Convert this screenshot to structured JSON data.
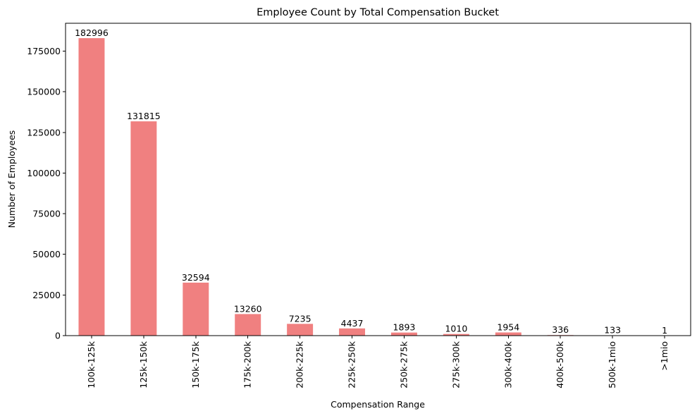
{
  "chart_data": {
    "type": "bar",
    "title": "Employee Count by Total Compensation Bucket",
    "xlabel": "Compensation Range",
    "ylabel": "Number of Employees",
    "categories": [
      "100k-125k",
      "125k-150k",
      "150k-175k",
      "175k-200k",
      "200k-225k",
      "225k-250k",
      "250k-275k",
      "275k-300k",
      "300k-400k",
      "400k-500k",
      "500k-1mio",
      ">1mio"
    ],
    "values": [
      182996,
      131815,
      32594,
      13260,
      7235,
      4437,
      1893,
      1010,
      1954,
      336,
      133,
      1
    ],
    "data_labels": [
      "182996",
      "131815",
      "32594",
      "13260",
      "7235",
      "4437",
      "1893",
      "1010",
      "1954",
      "336",
      "133",
      "1"
    ],
    "yticks": [
      0,
      25000,
      50000,
      75000,
      100000,
      125000,
      150000,
      175000
    ],
    "ytick_labels": [
      "0",
      "25000",
      "50000",
      "75000",
      "100000",
      "125000",
      "150000",
      "175000"
    ],
    "ylim": [
      0,
      192146
    ],
    "bar_color": "#f08080",
    "grid": false,
    "legend": "none"
  }
}
